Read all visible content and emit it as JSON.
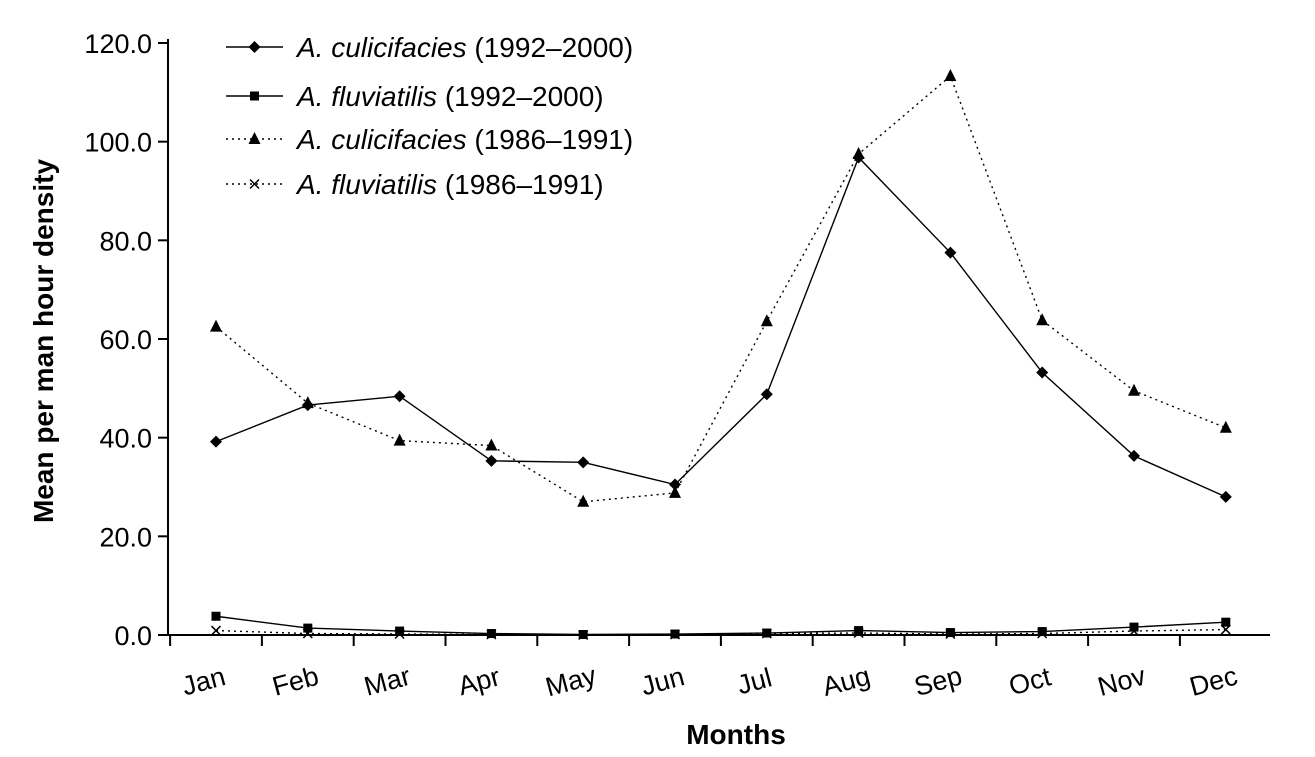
{
  "chart_data": {
    "type": "line",
    "title": "",
    "xlabel": "Months",
    "ylabel": "Mean per man hour density",
    "ylim": [
      0,
      120
    ],
    "y_ticks": [
      "0.0",
      "20.0",
      "40.0",
      "60.0",
      "80.0",
      "100.0",
      "120.0"
    ],
    "categories": [
      "Jan",
      "Feb",
      "Mar",
      "Apr",
      "May",
      "Jun",
      "Jul",
      "Aug",
      "Sep",
      "Oct",
      "Nov",
      "Dec"
    ],
    "legend_position": "top-left",
    "series": [
      {
        "species": "A. culicifacies",
        "period": "(1992–2000)",
        "marker": "diamond",
        "line_style": "solid",
        "values": [
          39.2,
          46.6,
          48.4,
          35.3,
          35.0,
          30.5,
          48.8,
          96.8,
          77.5,
          53.2,
          36.3,
          28.0
        ]
      },
      {
        "species": "A. fluviatilis",
        "period": "(1992–2000)",
        "marker": "square",
        "line_style": "solid",
        "values": [
          3.8,
          1.4,
          0.8,
          0.3,
          0.1,
          0.2,
          0.4,
          0.9,
          0.5,
          0.7,
          1.6,
          2.6
        ]
      },
      {
        "species": "A. culicifacies",
        "period": "(1986–1991)",
        "marker": "triangle",
        "line_style": "dotted",
        "values": [
          62.5,
          47.0,
          39.4,
          38.4,
          27.0,
          28.8,
          63.6,
          97.5,
          113.3,
          63.8,
          49.5,
          42.0
        ]
      },
      {
        "species": "A. fluviatilis",
        "period": "(1986–1991)",
        "marker": "x",
        "line_style": "dotted",
        "values": [
          0.9,
          0.3,
          0.2,
          0.1,
          0.0,
          0.1,
          0.3,
          0.4,
          0.2,
          0.3,
          0.8,
          1.1
        ]
      }
    ]
  }
}
